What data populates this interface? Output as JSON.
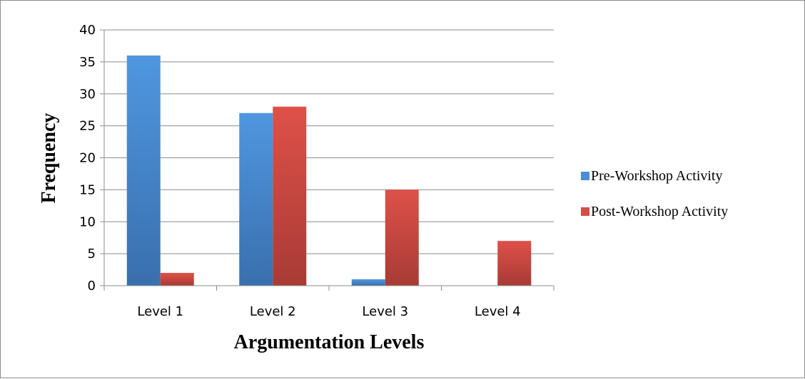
{
  "chart_data": {
    "type": "bar",
    "title": "",
    "xlabel": "Argumentation Levels",
    "ylabel": "Frequency",
    "categories": [
      "Level 1",
      "Level 2",
      "Level 3",
      "Level 4"
    ],
    "series": [
      {
        "name": "Pre-Workshop Activity",
        "values": [
          36,
          27,
          1,
          0
        ],
        "color": "#4a8fd6"
      },
      {
        "name": "Post-Workshop Activity",
        "values": [
          2,
          28,
          15,
          7
        ],
        "color": "#d64d45"
      }
    ],
    "ylim": [
      0,
      40
    ],
    "yticks": [
      "0",
      "5",
      "10",
      "15",
      "20",
      "25",
      "30",
      "35",
      "40"
    ],
    "grid": true,
    "legend_position": "right"
  }
}
